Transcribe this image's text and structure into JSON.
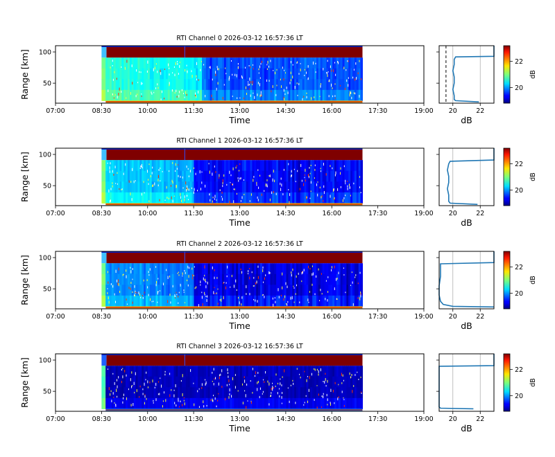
{
  "chart_data": {
    "type": "heatmap",
    "colormap": "jet",
    "x_axis": {
      "label": "Time",
      "tick_labels": [
        "07:00",
        "08:30",
        "10:00",
        "11:30",
        "13:00",
        "14:30",
        "16:00",
        "17:30",
        "19:00"
      ],
      "range_hours": [
        7.0,
        19.0
      ],
      "data_start_hours": 8.5,
      "data_end_hours": 17.0
    },
    "y_axis": {
      "label": "Range [km]",
      "tick_labels": [
        "50",
        "100"
      ],
      "ticks": [
        50,
        100
      ],
      "range": [
        18,
        110
      ]
    },
    "profile_axis": {
      "label": "dB",
      "tick_labels": [
        "20",
        "22"
      ],
      "ticks": [
        20,
        22
      ],
      "range": [
        19.0,
        23.0
      ],
      "grid": true
    },
    "colorbar": {
      "label": "dB",
      "tick_labels": [
        "20",
        "22"
      ],
      "ticks": [
        20,
        22
      ],
      "range": [
        18.8,
        23.2
      ]
    },
    "panels": [
      {
        "title": "RTI Channel 0 2026-03-12 16:57:36 LT",
        "mean_low_db": 20.1,
        "mean_high_db": 23.0,
        "noise_floor_db": 19.5,
        "profile_points": [
          [
            21.9,
            20
          ],
          [
            20.2,
            22
          ],
          [
            20.1,
            24
          ],
          [
            20.1,
            30
          ],
          [
            20.0,
            40
          ],
          [
            20.1,
            50
          ],
          [
            20.1,
            60
          ],
          [
            20.0,
            70
          ],
          [
            20.1,
            80
          ],
          [
            20.1,
            88
          ],
          [
            20.2,
            92
          ],
          [
            23.0,
            93
          ],
          [
            23.0,
            110
          ]
        ]
      },
      {
        "title": "RTI Channel 1 2026-03-12 16:57:36 LT",
        "mean_low_db": 19.7,
        "mean_high_db": 23.0,
        "profile_points": [
          [
            21.8,
            20
          ],
          [
            19.8,
            22
          ],
          [
            19.7,
            25
          ],
          [
            19.7,
            35
          ],
          [
            19.6,
            45
          ],
          [
            19.7,
            55
          ],
          [
            19.7,
            65
          ],
          [
            19.6,
            75
          ],
          [
            19.7,
            85
          ],
          [
            19.8,
            89
          ],
          [
            23.0,
            91
          ],
          [
            23.0,
            110
          ]
        ]
      },
      {
        "title": "RTI Channel 2 2026-03-12 16:57:36 LT",
        "mean_low_db": 19.0,
        "mean_high_db": 23.0,
        "profile_points": [
          [
            23.0,
            21
          ],
          [
            20.0,
            22
          ],
          [
            19.3,
            25
          ],
          [
            19.1,
            30
          ],
          [
            19.0,
            40
          ],
          [
            19.0,
            55
          ],
          [
            19.1,
            70
          ],
          [
            19.1,
            85
          ],
          [
            19.1,
            90
          ],
          [
            23.0,
            92
          ],
          [
            23.0,
            110
          ]
        ]
      },
      {
        "title": "RTI Channel 3 2026-03-12 16:57:36 LT",
        "mean_low_db": 18.6,
        "mean_high_db": 23.0,
        "profile_points": [
          [
            21.5,
            22
          ],
          [
            19.1,
            23
          ],
          [
            19.0,
            25
          ],
          [
            19.0,
            90
          ],
          [
            23.0,
            91
          ],
          [
            23.0,
            110
          ]
        ]
      }
    ]
  }
}
